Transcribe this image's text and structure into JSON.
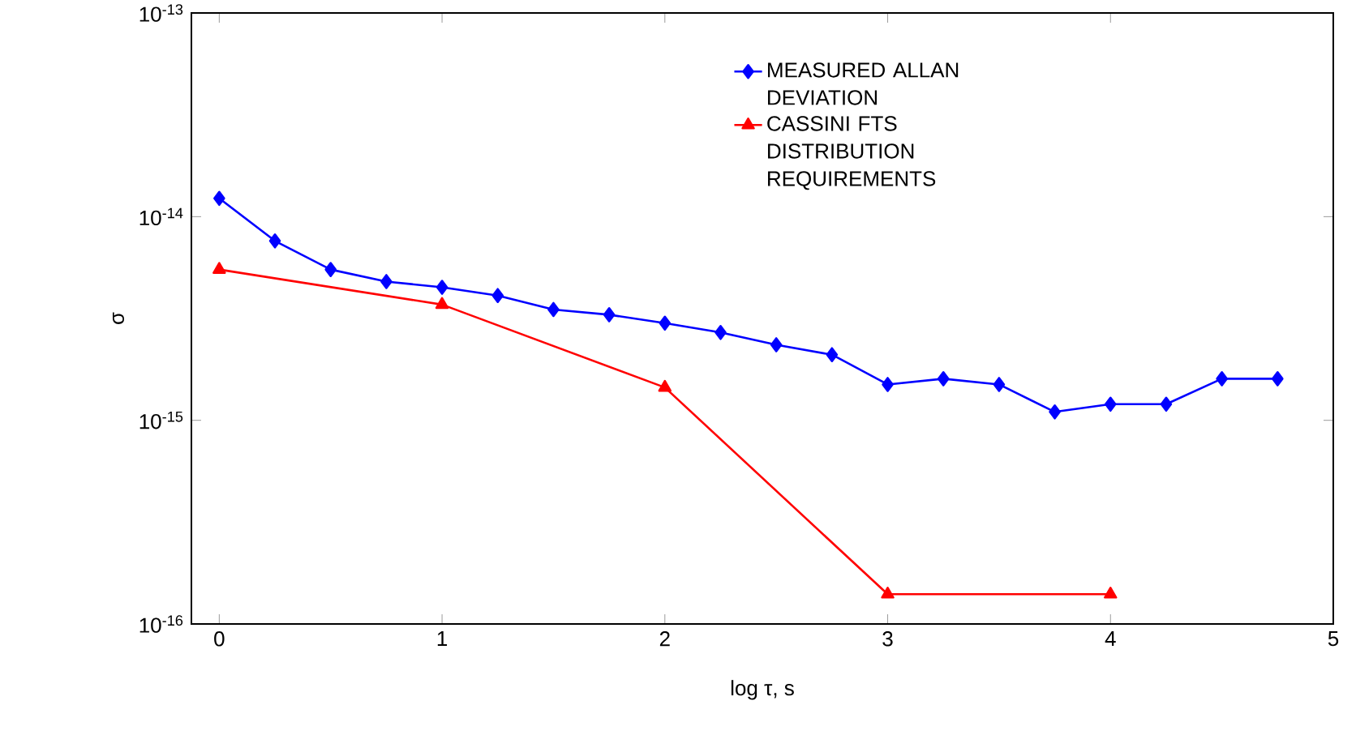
{
  "chart_data": {
    "type": "line",
    "xlabel": "log τ, s",
    "ylabel": "σ",
    "log": "y",
    "xlim": [
      -0.125,
      5.0
    ],
    "ylim": [
      1e-16,
      1e-13
    ],
    "xticks": [
      0,
      1,
      2,
      3,
      4,
      5
    ],
    "yticks": [
      {
        "value": 1e-16,
        "label": "10$^{-16}$"
      },
      {
        "value": 1e-15,
        "label": "10$^{-15}$"
      },
      {
        "value": 1e-14,
        "label": "10$^{-14}$"
      },
      {
        "value": 1e-13,
        "label": "10$^{-13}$"
      }
    ],
    "grid": false,
    "legend": "top right",
    "series": [
      {
        "name": "MEASURED ALLAN DEVIATION",
        "color": "#0000ff",
        "marker": "diamond",
        "x": [
          0,
          0.25,
          0.5,
          0.75,
          1,
          1.25,
          1.5,
          1.75,
          2,
          2.25,
          2.5,
          2.75,
          3,
          3.25,
          3.5,
          3.75,
          4,
          4.25,
          4.5,
          4.75
        ],
        "values": [
          1.23e-14,
          7.6e-15,
          5.5e-15,
          4.8e-15,
          4.5e-15,
          4.1e-15,
          3.5e-15,
          3.3e-15,
          3e-15,
          2.7e-15,
          2.35e-15,
          2.1e-15,
          1.5e-15,
          1.6e-15,
          1.5e-15,
          1.1e-15,
          1.2e-15,
          1.2e-15,
          1.6e-15,
          1.6e-15
        ]
      },
      {
        "name": "CASSINI FTS DISTRIBUTION REQUIREMENTS",
        "color": "#ff0000",
        "marker": "triangle",
        "x": [
          0,
          1,
          2,
          3,
          4
        ],
        "values": [
          5.5e-15,
          3.7e-15,
          1.45e-15,
          1.4e-16,
          1.4e-16
        ]
      }
    ]
  }
}
